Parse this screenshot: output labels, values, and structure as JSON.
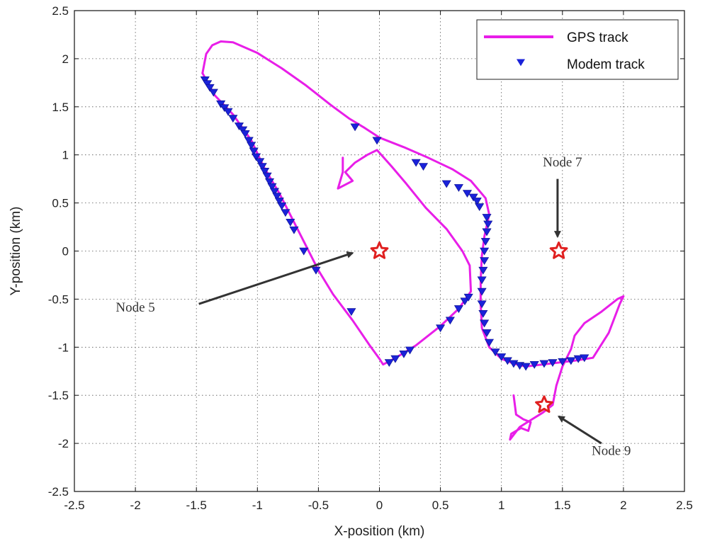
{
  "chart_data": {
    "type": "scatter",
    "xlabel": "X-position (km)",
    "ylabel": "Y-position (km)",
    "xlim": [
      -2.5,
      2.5
    ],
    "ylim": [
      -2.5,
      2.5
    ],
    "xticks": [
      "-2.5",
      "-2",
      "-1.5",
      "-1",
      "-0.5",
      "0",
      "0.5",
      "1",
      "1.5",
      "2",
      "2.5"
    ],
    "yticks": [
      "2.5",
      "2",
      "1.5",
      "1",
      "0.5",
      "0",
      "-0.5",
      "-1",
      "-1.5",
      "-2",
      "-2.5"
    ],
    "grid": true,
    "legend_position": "top-right",
    "series": [
      {
        "name": "GPS track",
        "kind": "line",
        "color": "#e81ee8",
        "points": [
          [
            -1.45,
            1.85
          ],
          [
            -1.42,
            2.05
          ],
          [
            -1.37,
            2.14
          ],
          [
            -1.3,
            2.18
          ],
          [
            -1.2,
            2.17
          ],
          [
            -1.0,
            2.06
          ],
          [
            -0.8,
            1.9
          ],
          [
            -0.6,
            1.72
          ],
          [
            -0.4,
            1.52
          ],
          [
            -0.25,
            1.38
          ],
          [
            -0.12,
            1.28
          ],
          [
            0.0,
            1.18
          ],
          [
            0.2,
            1.08
          ],
          [
            0.4,
            0.97
          ],
          [
            0.6,
            0.85
          ],
          [
            0.75,
            0.73
          ],
          [
            0.87,
            0.55
          ],
          [
            0.9,
            0.38
          ],
          [
            0.86,
            0.15
          ],
          [
            0.84,
            -0.05
          ],
          [
            0.83,
            -0.3
          ],
          [
            0.83,
            -0.55
          ],
          [
            0.84,
            -0.8
          ],
          [
            0.9,
            -1.0
          ],
          [
            1.0,
            -1.12
          ],
          [
            1.1,
            -1.17
          ],
          [
            1.2,
            -1.2
          ],
          [
            1.4,
            -1.17
          ],
          [
            1.6,
            -1.14
          ],
          [
            1.75,
            -1.11
          ],
          [
            1.88,
            -0.85
          ],
          [
            1.97,
            -0.55
          ],
          [
            2.0,
            -0.47
          ],
          [
            1.95,
            -0.5
          ],
          [
            1.82,
            -0.63
          ],
          [
            1.68,
            -0.75
          ],
          [
            1.6,
            -0.88
          ],
          [
            1.57,
            -1.02
          ],
          [
            1.5,
            -1.2
          ],
          [
            1.45,
            -1.4
          ],
          [
            1.42,
            -1.6
          ],
          [
            1.34,
            -1.68
          ],
          [
            1.25,
            -1.75
          ],
          [
            1.15,
            -1.83
          ],
          [
            1.07,
            -1.96
          ],
          [
            1.08,
            -1.9
          ],
          [
            1.16,
            -1.84
          ],
          [
            1.22,
            -1.87
          ],
          [
            1.24,
            -1.78
          ],
          [
            1.18,
            -1.75
          ],
          [
            1.12,
            -1.7
          ],
          [
            1.1,
            -1.5
          ]
        ]
      },
      {
        "name": "GPS track",
        "kind": "line",
        "color": "#e81ee8",
        "points": [
          [
            -1.45,
            1.85
          ],
          [
            -1.35,
            1.62
          ],
          [
            -1.2,
            1.42
          ],
          [
            -1.05,
            1.15
          ],
          [
            -0.95,
            0.88
          ],
          [
            -0.82,
            0.6
          ],
          [
            -0.7,
            0.3
          ],
          [
            -0.6,
            0.05
          ],
          [
            -0.5,
            -0.2
          ],
          [
            -0.38,
            -0.45
          ],
          [
            -0.22,
            -0.72
          ],
          [
            -0.08,
            -0.98
          ],
          [
            0.0,
            -1.12
          ],
          [
            0.03,
            -1.18
          ],
          [
            0.12,
            -1.12
          ],
          [
            0.3,
            -0.98
          ],
          [
            0.5,
            -0.78
          ],
          [
            0.65,
            -0.6
          ],
          [
            0.75,
            -0.42
          ],
          [
            0.74,
            -0.15
          ],
          [
            0.68,
            0.0
          ],
          [
            0.55,
            0.23
          ],
          [
            0.38,
            0.45
          ],
          [
            0.22,
            0.7
          ],
          [
            0.1,
            0.88
          ],
          [
            -0.02,
            1.05
          ],
          [
            -0.1,
            1.0
          ],
          [
            -0.2,
            0.92
          ],
          [
            -0.28,
            0.82
          ],
          [
            -0.22,
            0.73
          ],
          [
            -0.34,
            0.65
          ],
          [
            -0.3,
            0.82
          ],
          [
            -0.3,
            0.97
          ]
        ]
      },
      {
        "name": "Modem track",
        "kind": "markers",
        "color": "#1a22d9",
        "points": [
          [
            -1.43,
            1.78
          ],
          [
            -1.41,
            1.74
          ],
          [
            -1.39,
            1.7
          ],
          [
            -1.36,
            1.65
          ],
          [
            -1.3,
            1.53
          ],
          [
            -1.27,
            1.49
          ],
          [
            -1.24,
            1.45
          ],
          [
            -1.2,
            1.38
          ],
          [
            -1.15,
            1.3
          ],
          [
            -1.12,
            1.26
          ],
          [
            -1.1,
            1.22
          ],
          [
            -1.07,
            1.15
          ],
          [
            -1.05,
            1.1
          ],
          [
            -1.03,
            1.04
          ],
          [
            -1.01,
            0.98
          ],
          [
            -0.98,
            0.93
          ],
          [
            -0.96,
            0.88
          ],
          [
            -0.94,
            0.83
          ],
          [
            -0.92,
            0.78
          ],
          [
            -0.9,
            0.72
          ],
          [
            -0.88,
            0.67
          ],
          [
            -0.86,
            0.62
          ],
          [
            -0.84,
            0.57
          ],
          [
            -0.82,
            0.52
          ],
          [
            -0.8,
            0.47
          ],
          [
            -0.77,
            0.4
          ],
          [
            -0.73,
            0.3
          ],
          [
            -0.7,
            0.22
          ],
          [
            -0.62,
            0.0
          ],
          [
            -0.52,
            -0.2
          ],
          [
            -0.23,
            -0.63
          ],
          [
            0.08,
            -1.16
          ],
          [
            0.13,
            -1.12
          ],
          [
            0.2,
            -1.07
          ],
          [
            0.25,
            -1.03
          ],
          [
            0.5,
            -0.8
          ],
          [
            0.58,
            -0.72
          ],
          [
            0.65,
            -0.6
          ],
          [
            0.7,
            -0.52
          ],
          [
            0.73,
            -0.48
          ],
          [
            -0.2,
            1.29
          ],
          [
            -0.02,
            1.15
          ],
          [
            0.3,
            0.92
          ],
          [
            0.36,
            0.88
          ],
          [
            0.55,
            0.7
          ],
          [
            0.65,
            0.66
          ],
          [
            0.72,
            0.6
          ],
          [
            0.77,
            0.56
          ],
          [
            0.8,
            0.52
          ],
          [
            0.82,
            0.46
          ],
          [
            0.88,
            0.35
          ],
          [
            0.89,
            0.28
          ],
          [
            0.88,
            0.2
          ],
          [
            0.87,
            0.1
          ],
          [
            0.86,
            0.0
          ],
          [
            0.86,
            -0.1
          ],
          [
            0.85,
            -0.2
          ],
          [
            0.84,
            -0.3
          ],
          [
            0.84,
            -0.42
          ],
          [
            0.84,
            -0.55
          ],
          [
            0.85,
            -0.65
          ],
          [
            0.86,
            -0.75
          ],
          [
            0.88,
            -0.85
          ],
          [
            0.9,
            -0.95
          ],
          [
            0.95,
            -1.05
          ],
          [
            1.0,
            -1.1
          ],
          [
            1.05,
            -1.14
          ],
          [
            1.1,
            -1.17
          ],
          [
            1.15,
            -1.19
          ],
          [
            1.2,
            -1.2
          ],
          [
            1.27,
            -1.18
          ],
          [
            1.35,
            -1.17
          ],
          [
            1.42,
            -1.16
          ],
          [
            1.5,
            -1.15
          ],
          [
            1.57,
            -1.14
          ],
          [
            1.63,
            -1.12
          ],
          [
            1.68,
            -1.11
          ]
        ]
      },
      {
        "name": "Nodes",
        "kind": "stars",
        "color": "#e02020",
        "points": [
          [
            0.0,
            0.0
          ],
          [
            1.47,
            0.0
          ],
          [
            1.35,
            -1.6
          ]
        ]
      }
    ],
    "annotations": [
      {
        "text": "Node 5",
        "at": [
          -2.0,
          -0.63
        ],
        "arrow_from": [
          -1.48,
          -0.55
        ],
        "arrow_to": [
          -0.22,
          -0.02
        ]
      },
      {
        "text": "Node 7",
        "at": [
          1.5,
          0.88
        ],
        "arrow_from": [
          1.46,
          0.75
        ],
        "arrow_to": [
          1.46,
          0.15
        ]
      },
      {
        "text": "Node 9",
        "at": [
          1.9,
          -2.12
        ],
        "arrow_from": [
          1.82,
          -2.0
        ],
        "arrow_to": [
          1.47,
          -1.72
        ]
      }
    ]
  }
}
